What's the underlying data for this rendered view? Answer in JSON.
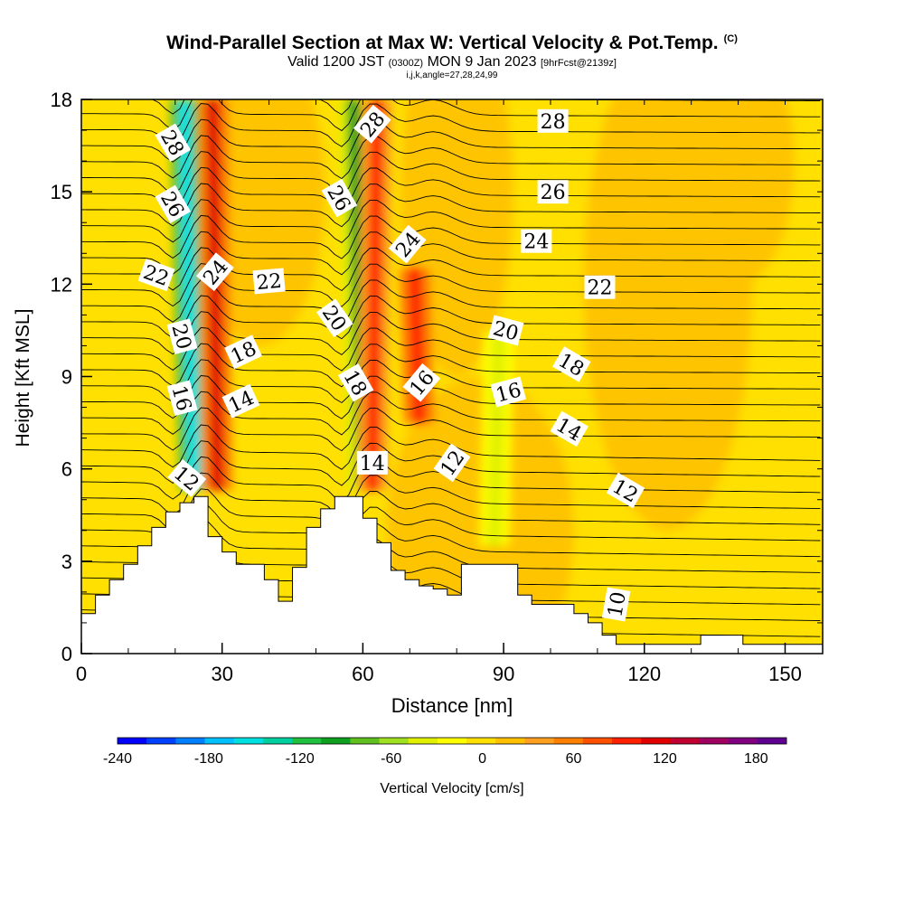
{
  "title": {
    "main": "Wind-Parallel Section at Max W: Vertical Velocity & Pot.Temp.",
    "copyright": "(C)",
    "valid_prefix": "Valid 1200 JST",
    "valid_utc": "(0300Z)",
    "valid_date": "MON 9 Jan 2023",
    "forecast": "[9hrFcst@2139z]",
    "indices": "i,j,k,angle=27,28,24,99"
  },
  "colors": {
    "colorbar": [
      "#0000ff",
      "#0040ff",
      "#0080ff",
      "#00c0ff",
      "#00e0e0",
      "#00d0a0",
      "#20c040",
      "#10a020",
      "#60c020",
      "#a0e020",
      "#e0f000",
      "#ffff00",
      "#ffe000",
      "#ffc000",
      "#ffa020",
      "#ff8000",
      "#ff5000",
      "#ff2000",
      "#e00000",
      "#c00030",
      "#a00060",
      "#800080",
      "#600090"
    ]
  },
  "chart_data": {
    "type": "heatmap",
    "title": "Wind-Parallel Section at Max W: Vertical Velocity & Pot.Temp.",
    "xlabel": "Distance [nm]",
    "ylabel": "Height [Kft MSL]",
    "xlim": [
      0,
      158
    ],
    "ylim": [
      0,
      18
    ],
    "xticks": [
      0,
      30,
      60,
      90,
      120,
      150
    ],
    "yticks": [
      0,
      3,
      6,
      9,
      12,
      15,
      18
    ],
    "colorbar": {
      "label": "Vertical Velocity [cm/s]",
      "ticks": [
        -240,
        -180,
        -120,
        -60,
        0,
        60,
        120,
        180
      ],
      "range": [
        -240,
        200
      ]
    },
    "vertical_velocity_bands": [
      {
        "x_at_top": 22,
        "x_at_bottom": 24,
        "y_range": [
          5.3,
          18
        ],
        "value": -150
      },
      {
        "x_at_top": 28,
        "x_at_bottom": 29,
        "y_range": [
          5.3,
          18
        ],
        "value": 120
      },
      {
        "x_at_top": 58,
        "x_at_bottom": 60,
        "y_range": [
          5.3,
          18
        ],
        "value": -90
      },
      {
        "x_at_top": 63,
        "x_at_bottom": 62,
        "y_range": [
          5.3,
          18
        ],
        "value": 90
      },
      {
        "x_at_top": 71,
        "x_at_bottom": 72,
        "y_range": [
          7.5,
          12.5
        ],
        "value": 100
      },
      {
        "x_at_top": 89,
        "x_at_bottom": 88,
        "y_range": [
          3.5,
          10.5
        ],
        "value": -40
      }
    ],
    "terrain_profile": {
      "x": [
        0,
        3,
        3,
        6,
        6,
        9,
        9,
        12,
        12,
        15,
        15,
        18,
        18,
        21,
        21,
        24,
        24,
        27,
        27,
        30,
        30,
        33,
        33,
        36,
        36,
        39,
        39,
        42,
        42,
        45,
        45,
        48,
        48,
        51,
        51,
        54,
        54,
        57,
        57,
        60,
        60,
        63,
        63,
        66,
        66,
        69,
        69,
        72,
        72,
        75,
        75,
        78,
        78,
        81,
        81,
        84,
        84,
        87,
        87,
        90,
        90,
        93,
        93,
        96,
        96,
        99,
        99,
        102,
        102,
        105,
        105,
        108,
        108,
        111,
        111,
        114,
        114,
        117,
        117,
        120,
        120,
        123,
        123,
        126,
        126,
        129,
        129,
        132,
        132,
        135,
        135,
        138,
        138,
        141,
        141,
        144,
        144,
        147,
        147,
        150,
        150,
        153,
        153,
        156,
        156,
        158
      ],
      "y": [
        1.3,
        1.3,
        1.9,
        1.9,
        2.4,
        2.4,
        2.9,
        2.9,
        3.5,
        3.5,
        4.1,
        4.1,
        4.6,
        4.6,
        4.9,
        4.9,
        5.1,
        5.1,
        3.8,
        3.8,
        3.3,
        3.3,
        2.9,
        2.9,
        2.9,
        2.9,
        2.4,
        2.4,
        1.7,
        1.7,
        2.8,
        2.8,
        4.1,
        4.1,
        4.7,
        4.7,
        5.1,
        5.1,
        5.1,
        5.1,
        4.4,
        4.4,
        3.6,
        3.6,
        2.7,
        2.7,
        2.4,
        2.4,
        2.2,
        2.2,
        2.1,
        2.1,
        1.9,
        1.9,
        2.9,
        2.9,
        2.9,
        2.9,
        2.9,
        2.9,
        2.9,
        2.9,
        1.9,
        1.9,
        1.6,
        1.6,
        1.6,
        1.6,
        1.6,
        1.6,
        1.3,
        1.3,
        1.0,
        1.0,
        0.6,
        0.6,
        0.3,
        0.3,
        0.3,
        0.3,
        0.3,
        0.3,
        0.3,
        0.3,
        0.3,
        0.3,
        0.3,
        0.3,
        0.6,
        0.6,
        0.6,
        0.6,
        0.6,
        0.6,
        0.3,
        0.3,
        0.3,
        0.3,
        0.3,
        0.3,
        0.3,
        0.3,
        0.3,
        0.3,
        0.3,
        0.3
      ]
    },
    "contour_labels": [
      {
        "text": "28",
        "x": 19.5,
        "y": 16.6,
        "angle": 60
      },
      {
        "text": "26",
        "x": 19.5,
        "y": 14.6,
        "angle": 60
      },
      {
        "text": "22",
        "x": 16,
        "y": 12.3,
        "angle": 20
      },
      {
        "text": "20",
        "x": 21.5,
        "y": 10.3,
        "angle": 75
      },
      {
        "text": "16",
        "x": 21.5,
        "y": 8.3,
        "angle": 75
      },
      {
        "text": "12",
        "x": 22.5,
        "y": 5.7,
        "angle": 40
      },
      {
        "text": "24",
        "x": 28.5,
        "y": 12.4,
        "angle": -50
      },
      {
        "text": "22",
        "x": 40,
        "y": 12.1,
        "angle": -5
      },
      {
        "text": "18",
        "x": 34.5,
        "y": 9.8,
        "angle": -25
      },
      {
        "text": "14",
        "x": 34,
        "y": 8.2,
        "angle": -25
      },
      {
        "text": "28",
        "x": 62,
        "y": 17.2,
        "angle": -50
      },
      {
        "text": "26",
        "x": 55,
        "y": 14.8,
        "angle": 60
      },
      {
        "text": "24",
        "x": 69.5,
        "y": 13.3,
        "angle": -50
      },
      {
        "text": "20",
        "x": 54,
        "y": 10.9,
        "angle": 55
      },
      {
        "text": "18",
        "x": 58.5,
        "y": 8.8,
        "angle": 60
      },
      {
        "text": "16",
        "x": 72.5,
        "y": 8.8,
        "angle": -50
      },
      {
        "text": "14",
        "x": 62,
        "y": 6.2,
        "angle": 0
      },
      {
        "text": "12",
        "x": 79,
        "y": 6.2,
        "angle": -55
      },
      {
        "text": "28",
        "x": 100.5,
        "y": 17.3,
        "angle": 0
      },
      {
        "text": "26",
        "x": 100.5,
        "y": 15,
        "angle": 0
      },
      {
        "text": "24",
        "x": 97,
        "y": 13.4,
        "angle": 0
      },
      {
        "text": "22",
        "x": 110.5,
        "y": 11.9,
        "angle": 0
      },
      {
        "text": "20",
        "x": 90.5,
        "y": 10.5,
        "angle": 15
      },
      {
        "text": "18",
        "x": 104.5,
        "y": 9.4,
        "angle": 30
      },
      {
        "text": "16",
        "x": 91,
        "y": 8.5,
        "angle": -15
      },
      {
        "text": "14",
        "x": 104,
        "y": 7.3,
        "angle": 30
      },
      {
        "text": "12",
        "x": 116,
        "y": 5.3,
        "angle": 30
      },
      {
        "text": "10",
        "x": 114,
        "y": 1.6,
        "angle": -80
      }
    ]
  }
}
